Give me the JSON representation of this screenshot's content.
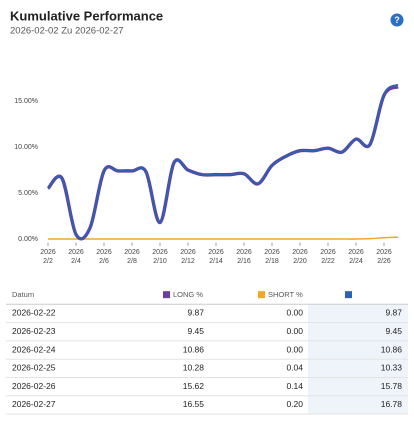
{
  "header": {
    "title": "Kumulative Performance",
    "subtitle": "2026-02-02 Zu 2026-02-27",
    "help_icon": "?"
  },
  "chart_data": {
    "type": "line",
    "x": [
      "2026-02-02",
      "2026-02-03",
      "2026-02-04",
      "2026-02-05",
      "2026-02-06",
      "2026-02-07",
      "2026-02-08",
      "2026-02-09",
      "2026-02-10",
      "2026-02-11",
      "2026-02-12",
      "2026-02-13",
      "2026-02-14",
      "2026-02-15",
      "2026-02-16",
      "2026-02-17",
      "2026-02-18",
      "2026-02-19",
      "2026-02-20",
      "2026-02-21",
      "2026-02-22",
      "2026-02-23",
      "2026-02-24",
      "2026-02-25",
      "2026-02-26",
      "2026-02-27"
    ],
    "series": [
      {
        "name": "LONG %",
        "color": "#6b3fa0",
        "values": [
          5.5,
          6.6,
          0.5,
          1.2,
          7.4,
          7.4,
          7.4,
          7.3,
          1.8,
          8.3,
          7.5,
          7.0,
          7.0,
          7.0,
          7.1,
          6.0,
          8.0,
          9.0,
          9.6,
          9.6,
          9.87,
          9.45,
          10.86,
          10.28,
          15.62,
          16.55
        ]
      },
      {
        "name": "SHORT %",
        "color": "#f5a623",
        "values": [
          0,
          0,
          0,
          0,
          0,
          0,
          0,
          0,
          0,
          0,
          0,
          0,
          0,
          0,
          0,
          0,
          0,
          0,
          0,
          0,
          0,
          0,
          0,
          0.04,
          0.14,
          0.2
        ]
      },
      {
        "color": "#2a63b0",
        "values": [
          5.5,
          6.6,
          0.5,
          1.2,
          7.4,
          7.4,
          7.4,
          7.3,
          1.8,
          8.3,
          7.5,
          7.0,
          7.0,
          7.0,
          7.1,
          6.0,
          8.0,
          9.0,
          9.6,
          9.6,
          9.87,
          9.45,
          10.86,
          10.33,
          15.78,
          16.78
        ]
      }
    ],
    "xlim": [
      "2026-02-02",
      "2026-02-27"
    ],
    "xticks": [
      {
        "value": "2026-02-02",
        "label": "2026 2/2"
      },
      {
        "value": "2026-02-04",
        "label": "2026 2/4"
      },
      {
        "value": "2026-02-06",
        "label": "2026 2/6"
      },
      {
        "value": "2026-02-08",
        "label": "2026 2/8"
      },
      {
        "value": "2026-02-10",
        "label": "2026 2/10"
      },
      {
        "value": "2026-02-12",
        "label": "2026 2/12"
      },
      {
        "value": "2026-02-14",
        "label": "2026 2/14"
      },
      {
        "value": "2026-02-16",
        "label": "2026 2/16"
      },
      {
        "value": "2026-02-18",
        "label": "2026 2/18"
      },
      {
        "value": "2026-02-20",
        "label": "2026 2/20"
      },
      {
        "value": "2026-02-22",
        "label": "2026 2/22"
      },
      {
        "value": "2026-02-24",
        "label": "2026 2/24"
      },
      {
        "value": "2026-02-26",
        "label": "2026 2/26"
      }
    ],
    "ylim": [
      -0.3,
      20
    ],
    "yticks": [
      {
        "value": 0,
        "label": "0.00%"
      },
      {
        "value": 5,
        "label": "5.00%"
      },
      {
        "value": 10,
        "label": "10.00%"
      },
      {
        "value": 15,
        "label": "15.00%"
      }
    ],
    "grid": false
  },
  "table": {
    "header": [
      "Datum",
      "LONG %",
      "SHORT %"
    ],
    "rows": [
      [
        "2026-02-22",
        "9.87",
        "0.00",
        "9.87"
      ],
      [
        "2026-02-23",
        "9.45",
        "0.00",
        "9.45"
      ],
      [
        "2026-02-24",
        "10.86",
        "0.00",
        "10.86"
      ],
      [
        "2026-02-25",
        "10.28",
        "0.04",
        "10.33"
      ],
      [
        "2026-02-26",
        "15.62",
        "0.14",
        "15.78"
      ],
      [
        "2026-02-27",
        "16.55",
        "0.20",
        "16.78"
      ]
    ]
  }
}
